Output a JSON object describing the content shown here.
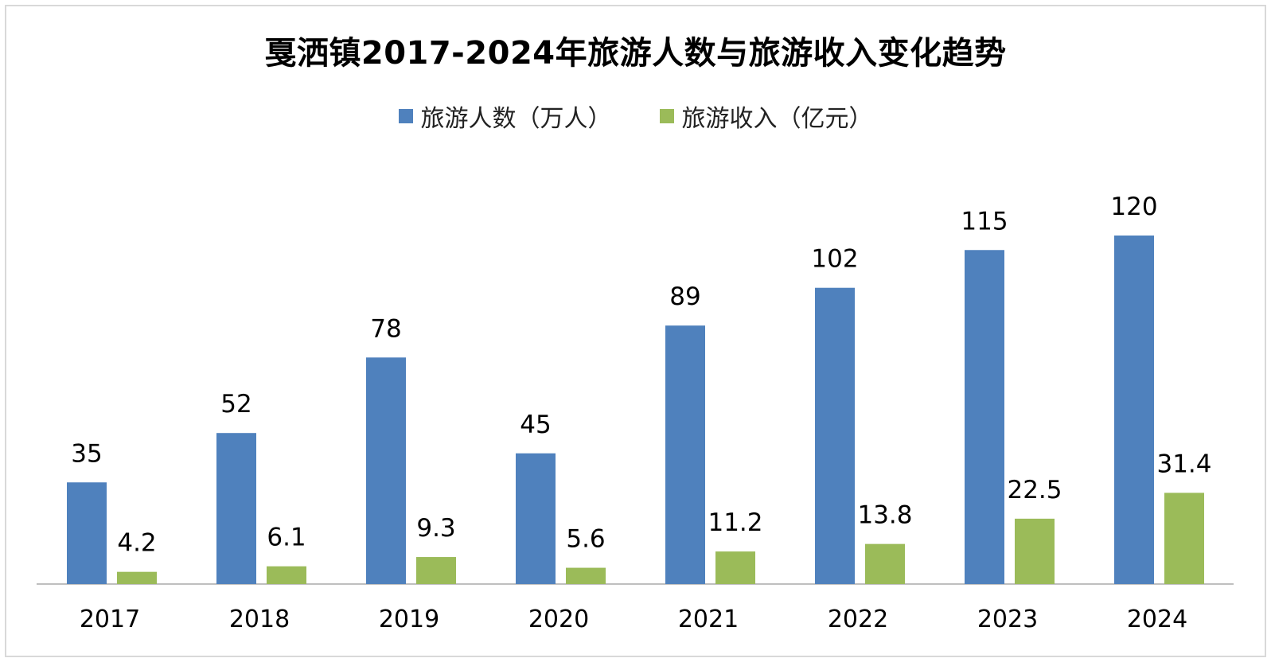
{
  "chart_data": {
    "type": "bar",
    "title": "戛洒镇2017-2024年旅游人数与旅游收入变化趋势",
    "categories": [
      "2017",
      "2018",
      "2019",
      "2020",
      "2021",
      "2022",
      "2023",
      "2024"
    ],
    "series": [
      {
        "name": "旅游人数（万人）",
        "color": "#4f81bd",
        "values": [
          35,
          52,
          78,
          45,
          89,
          102,
          115,
          120
        ],
        "labels": [
          "35",
          "52",
          "78",
          "45",
          "89",
          "102",
          "115",
          "120"
        ]
      },
      {
        "name": "旅游收入（亿元）",
        "color": "#9bbb59",
        "values": [
          4.2,
          6.1,
          9.3,
          5.6,
          11.2,
          13.8,
          22.5,
          31.4
        ],
        "labels": [
          "4.2",
          "6.1",
          "9.3",
          "5.6",
          "11.2",
          "13.8",
          "22.5",
          "31.4"
        ]
      }
    ],
    "ylim": [
      0,
      120
    ],
    "xlabel": "",
    "ylabel": "",
    "grid": false,
    "legend_position": "top-center"
  }
}
